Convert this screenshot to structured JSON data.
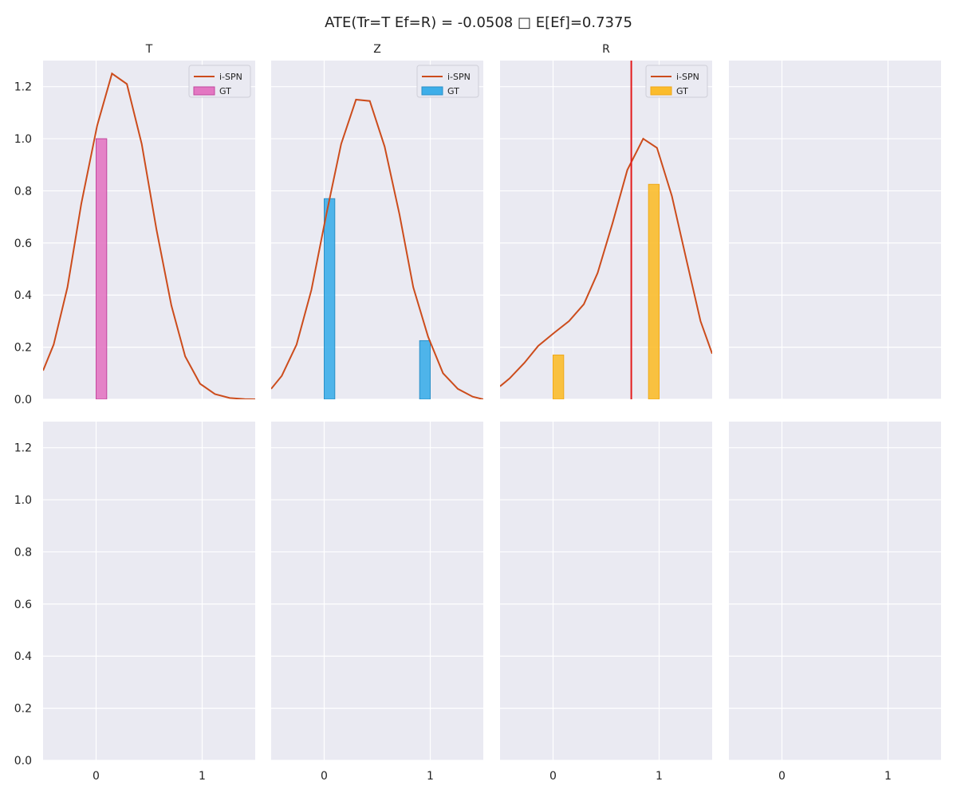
{
  "figure": {
    "suptitle": "ATE(Tr=T Ef=R) = -0.0508 □ E[Ef]=0.7375"
  },
  "chart_data": [
    {
      "type": "line",
      "title": "T",
      "xlim": [
        -0.5,
        1.5
      ],
      "ylim": [
        0,
        1.3
      ],
      "x_ticks": [
        "0",
        "1"
      ],
      "y_ticks": [
        "0.0",
        "0.2",
        "0.4",
        "0.6",
        "0.8",
        "1.0",
        "1.2"
      ],
      "grid": true,
      "legend": "top-right",
      "series": [
        {
          "name": "i-SPN",
          "kind": "line",
          "color": "#cc4c1c",
          "x": [
            -0.5,
            -0.4,
            -0.27,
            -0.14,
            0.01,
            0.15,
            0.29,
            0.43,
            0.57,
            0.71,
            0.84,
            0.98,
            1.12,
            1.26,
            1.4,
            1.5
          ],
          "y": [
            0.11,
            0.21,
            0.43,
            0.75,
            1.05,
            1.25,
            1.21,
            0.98,
            0.65,
            0.36,
            0.165,
            0.06,
            0.02,
            0.005,
            0.001,
            0.0
          ]
        },
        {
          "name": "GT",
          "kind": "bar",
          "color": "#e377c2",
          "edge": "#c2479e",
          "bars": [
            {
              "x": 0.05,
              "width": 0.1,
              "value": 1.0
            }
          ]
        }
      ]
    },
    {
      "type": "line",
      "title": "Z",
      "xlim": [
        -0.5,
        1.5
      ],
      "ylim": [
        0,
        1.3
      ],
      "x_ticks": [
        "0",
        "1"
      ],
      "grid": true,
      "legend": "top-right",
      "series": [
        {
          "name": "i-SPN",
          "kind": "line",
          "color": "#cc4c1c",
          "x": [
            -0.5,
            -0.4,
            -0.26,
            -0.12,
            0.02,
            0.16,
            0.3,
            0.43,
            0.57,
            0.71,
            0.84,
            0.98,
            1.12,
            1.26,
            1.4,
            1.5
          ],
          "y": [
            0.04,
            0.09,
            0.21,
            0.42,
            0.71,
            0.98,
            1.15,
            1.145,
            0.97,
            0.71,
            0.43,
            0.24,
            0.1,
            0.04,
            0.01,
            0.0
          ]
        },
        {
          "name": "GT",
          "kind": "bar",
          "color": "#3daee9",
          "edge": "#2a90c8",
          "bars": [
            {
              "x": 0.05,
              "width": 0.1,
              "value": 0.77
            },
            {
              "x": 0.95,
              "width": 0.1,
              "value": 0.225
            }
          ]
        }
      ]
    },
    {
      "type": "line",
      "title": "R",
      "xlim": [
        -0.5,
        1.5
      ],
      "ylim": [
        0,
        1.3
      ],
      "x_ticks": [
        "0",
        "1"
      ],
      "grid": true,
      "legend": "top-right",
      "vline": {
        "x": 0.7375,
        "color": "#e31a1c"
      },
      "series": [
        {
          "name": "i-SPN",
          "kind": "line",
          "color": "#cc4c1c",
          "x": [
            -0.5,
            -0.41,
            -0.27,
            -0.14,
            0.01,
            0.15,
            0.29,
            0.42,
            0.56,
            0.7,
            0.85,
            0.98,
            1.12,
            1.26,
            1.39,
            1.5
          ],
          "y": [
            0.05,
            0.08,
            0.14,
            0.205,
            0.255,
            0.3,
            0.365,
            0.485,
            0.675,
            0.88,
            1.0,
            0.965,
            0.78,
            0.53,
            0.3,
            0.175
          ]
        },
        {
          "name": "GT",
          "kind": "bar",
          "color": "#fbbc2c",
          "edge": "#f0a818",
          "bars": [
            {
              "x": 0.05,
              "width": 0.1,
              "value": 0.17
            },
            {
              "x": 0.95,
              "width": 0.1,
              "value": 0.825
            }
          ]
        }
      ]
    },
    {
      "type": "line",
      "title": "",
      "xlim": [
        -0.5,
        1.5
      ],
      "ylim": [
        0,
        1.3
      ],
      "x_ticks": [
        "0",
        "1"
      ],
      "grid": true,
      "series": []
    },
    {
      "type": "line",
      "title": "",
      "xlim": [
        -0.5,
        1.5
      ],
      "ylim": [
        0,
        1.3
      ],
      "x_ticks": [
        "0",
        "1"
      ],
      "y_ticks": [
        "0.0",
        "0.2",
        "0.4",
        "0.6",
        "0.8",
        "1.0",
        "1.2"
      ],
      "grid": true,
      "series": []
    },
    {
      "type": "line",
      "title": "",
      "xlim": [
        -0.5,
        1.5
      ],
      "ylim": [
        0,
        1.3
      ],
      "x_ticks": [
        "0",
        "1"
      ],
      "grid": true,
      "series": []
    },
    {
      "type": "line",
      "title": "",
      "xlim": [
        -0.5,
        1.5
      ],
      "ylim": [
        0,
        1.3
      ],
      "x_ticks": [
        "0",
        "1"
      ],
      "grid": true,
      "series": []
    },
    {
      "type": "line",
      "title": "",
      "xlim": [
        -0.5,
        1.5
      ],
      "ylim": [
        0,
        1.3
      ],
      "x_ticks": [
        "0",
        "1"
      ],
      "grid": true,
      "series": []
    }
  ]
}
